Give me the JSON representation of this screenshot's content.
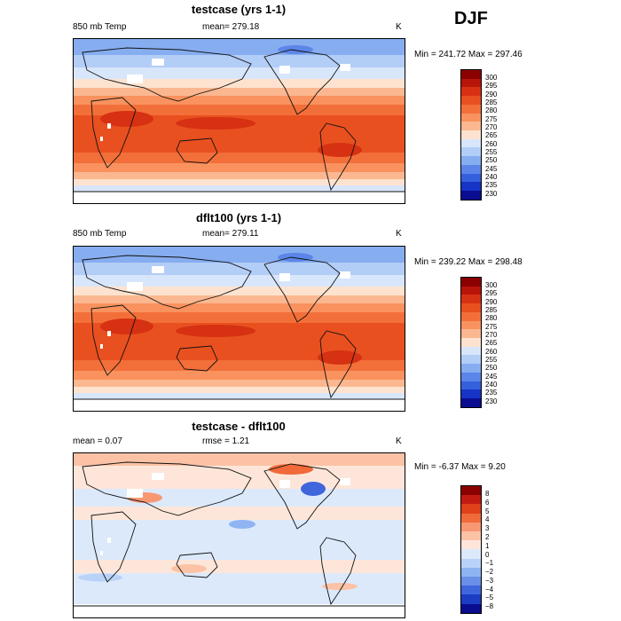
{
  "season": "DJF",
  "panels": [
    {
      "title": "testcase (yrs 1-1)",
      "variable": "850 mb Temp",
      "stat": "mean= 279.18",
      "units": "K",
      "minmax": "Min = 241.72  Max = 297.46",
      "field": "absolute",
      "colorbar_labels": [
        "300",
        "295",
        "290",
        "285",
        "280",
        "275",
        "270",
        "265",
        "260",
        "255",
        "250",
        "245",
        "240",
        "235",
        "230"
      ]
    },
    {
      "title": "dflt100 (yrs 1-1)",
      "variable": "850 mb Temp",
      "stat": "mean= 279.11",
      "units": "K",
      "minmax": "Min = 239.22  Max = 298.48",
      "field": "absolute",
      "colorbar_labels": [
        "300",
        "295",
        "290",
        "285",
        "280",
        "275",
        "270",
        "265",
        "260",
        "255",
        "250",
        "245",
        "240",
        "235",
        "230"
      ]
    },
    {
      "title": "testcase - dflt100",
      "mean_label": "mean =     0.07",
      "rmse_label": "rmse =     1.21",
      "units": "K",
      "minmax": "Min =  -6.37  Max =    9.20",
      "field": "difference",
      "colorbar_labels": [
        "8",
        "6",
        "5",
        "4",
        "3",
        "2",
        "1",
        "0",
        "−1",
        "−2",
        "−3",
        "−4",
        "−5",
        "−8"
      ]
    }
  ],
  "colors": {
    "abs_scale": [
      "#8b0000",
      "#b8150a",
      "#d63113",
      "#e9501f",
      "#f36f3a",
      "#f9925e",
      "#fbb790",
      "#fde3cf",
      "#d8e6fb",
      "#b2cdf6",
      "#86adf0",
      "#5b85e8",
      "#3560dd",
      "#1634c5",
      "#0a0d8f"
    ],
    "diff_scale": [
      "#8b0000",
      "#c21b12",
      "#e0401a",
      "#f06a3a",
      "#f79873",
      "#fbc2a6",
      "#fde6d9",
      "#dce9fb",
      "#b9d2f7",
      "#8fb4f1",
      "#6a8fe8",
      "#4066dc",
      "#1c3cc4",
      "#0a0d8f"
    ]
  }
}
